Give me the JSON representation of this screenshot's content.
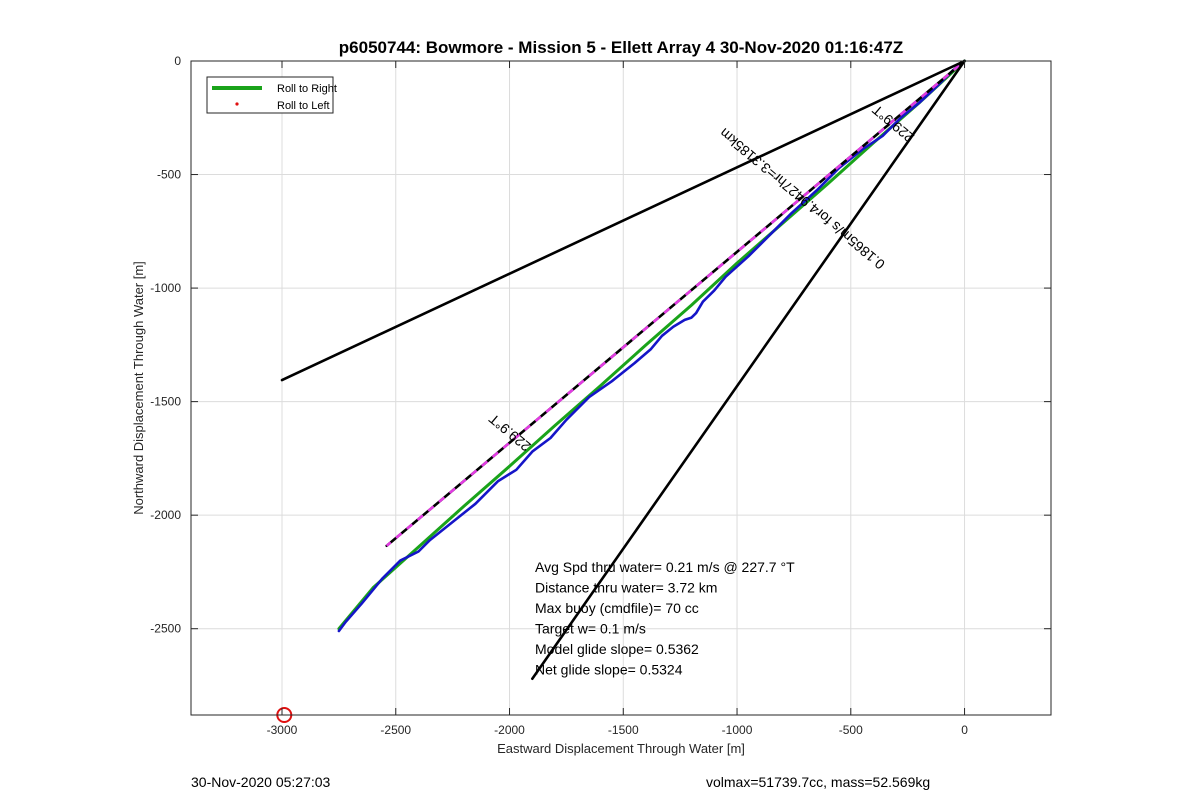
{
  "chart_data": {
    "type": "line",
    "title": "p6050744: Bowmore - Mission 5 - Ellett Array 4 30-Nov-2020 01:16:47Z",
    "xlabel": "Eastward Displacement Through Water [m]",
    "ylabel": "Northward Displacement Through Water [m]",
    "xlim": [
      -3400,
      380
    ],
    "ylim": [
      -2880,
      0
    ],
    "xticks": [
      -3000,
      -2500,
      -2000,
      -1500,
      -1000,
      -500,
      0
    ],
    "xtick_labels": [
      "-3000",
      "-2500",
      "-2000",
      "-1500",
      "-1000",
      "-500",
      "0"
    ],
    "yticks": [
      0,
      -500,
      -1000,
      -1500,
      -2000,
      -2500
    ],
    "ytick_labels": [
      "0",
      "-500",
      "-1000",
      "-1500",
      "-2000",
      "-2500"
    ],
    "grid": true,
    "legend": {
      "placement": "top-left",
      "entries": [
        {
          "label": "Roll to Right",
          "color": "#1aa31a",
          "marker": "line"
        },
        {
          "label": "Roll to Left",
          "color": "#e01010",
          "marker": "dot"
        }
      ]
    },
    "series": [
      {
        "name": "Roll to Right",
        "color": "#1aa31a",
        "x": [
          0,
          -200,
          -400,
          -600,
          -800,
          -1000,
          -1200,
          -1400,
          -1600,
          -1800,
          -2000,
          -2200,
          -2400,
          -2600,
          -2750
        ],
        "y": [
          0,
          -185,
          -360,
          -540,
          -715,
          -890,
          -1075,
          -1250,
          -1430,
          -1605,
          -1785,
          -1960,
          -2140,
          -2320,
          -2500
        ]
      },
      {
        "color": "#1515c8",
        "x": [
          0,
          -50,
          -120,
          -200,
          -280,
          -360,
          -450,
          -550,
          -650,
          -760,
          -850,
          -950,
          -1050,
          -1100,
          -1150,
          -1180,
          -1200,
          -1230,
          -1280,
          -1330,
          -1380,
          -1450,
          -1550,
          -1650,
          -1750,
          -1820,
          -1900,
          -1970,
          -2050,
          -2150,
          -2250,
          -2350,
          -2400,
          -2480,
          -2560,
          -2650,
          -2720,
          -2750
        ],
        "y": [
          0,
          -40,
          -110,
          -185,
          -250,
          -330,
          -390,
          -470,
          -570,
          -670,
          -760,
          -860,
          -950,
          -1010,
          -1060,
          -1110,
          -1130,
          -1140,
          -1170,
          -1210,
          -1270,
          -1330,
          -1410,
          -1480,
          -1580,
          -1660,
          -1720,
          -1800,
          -1850,
          -1950,
          -2030,
          -2110,
          -2160,
          -2200,
          -2280,
          -2390,
          -2470,
          -2510
        ]
      },
      {
        "color": "#000000",
        "dash": "magenta",
        "x": [
          0,
          -2540
        ],
        "y": [
          0,
          -2135
        ]
      },
      {
        "color": "#000000",
        "x": [
          0,
          -3000
        ],
        "y": [
          0,
          -1405
        ]
      },
      {
        "color": "#000000",
        "x": [
          0,
          -1900
        ],
        "y": [
          0,
          -2720
        ]
      }
    ],
    "markers": [
      {
        "shape": "circle",
        "color": "#e01010",
        "x": -2990,
        "y": -2880
      }
    ],
    "annotations": [
      {
        "text": "229.9°T",
        "x": -1985,
        "y": -1620,
        "angle": 40
      },
      {
        "text": "229.9°T",
        "x": -300,
        "y": -260,
        "angle": 40
      },
      {
        "text": "0.1865m/s for4.9427hr=3.3185km",
        "x": -700,
        "y": -590,
        "angle": 40
      }
    ],
    "stats": [
      "Avg Spd thru water=  0.21 m/s @ 227.7 °T",
      "Distance thru water=  3.72 km",
      "Max buoy (cmdfile)= 70 cc",
      "Target w= 0.1 m/s",
      "Model glide slope= 0.5362",
      "Net glide slope= 0.5324"
    ]
  },
  "footer": {
    "timestamp": "30-Nov-2020 05:27:03",
    "info": "volmax=51739.7cc, mass=52.569kg"
  }
}
